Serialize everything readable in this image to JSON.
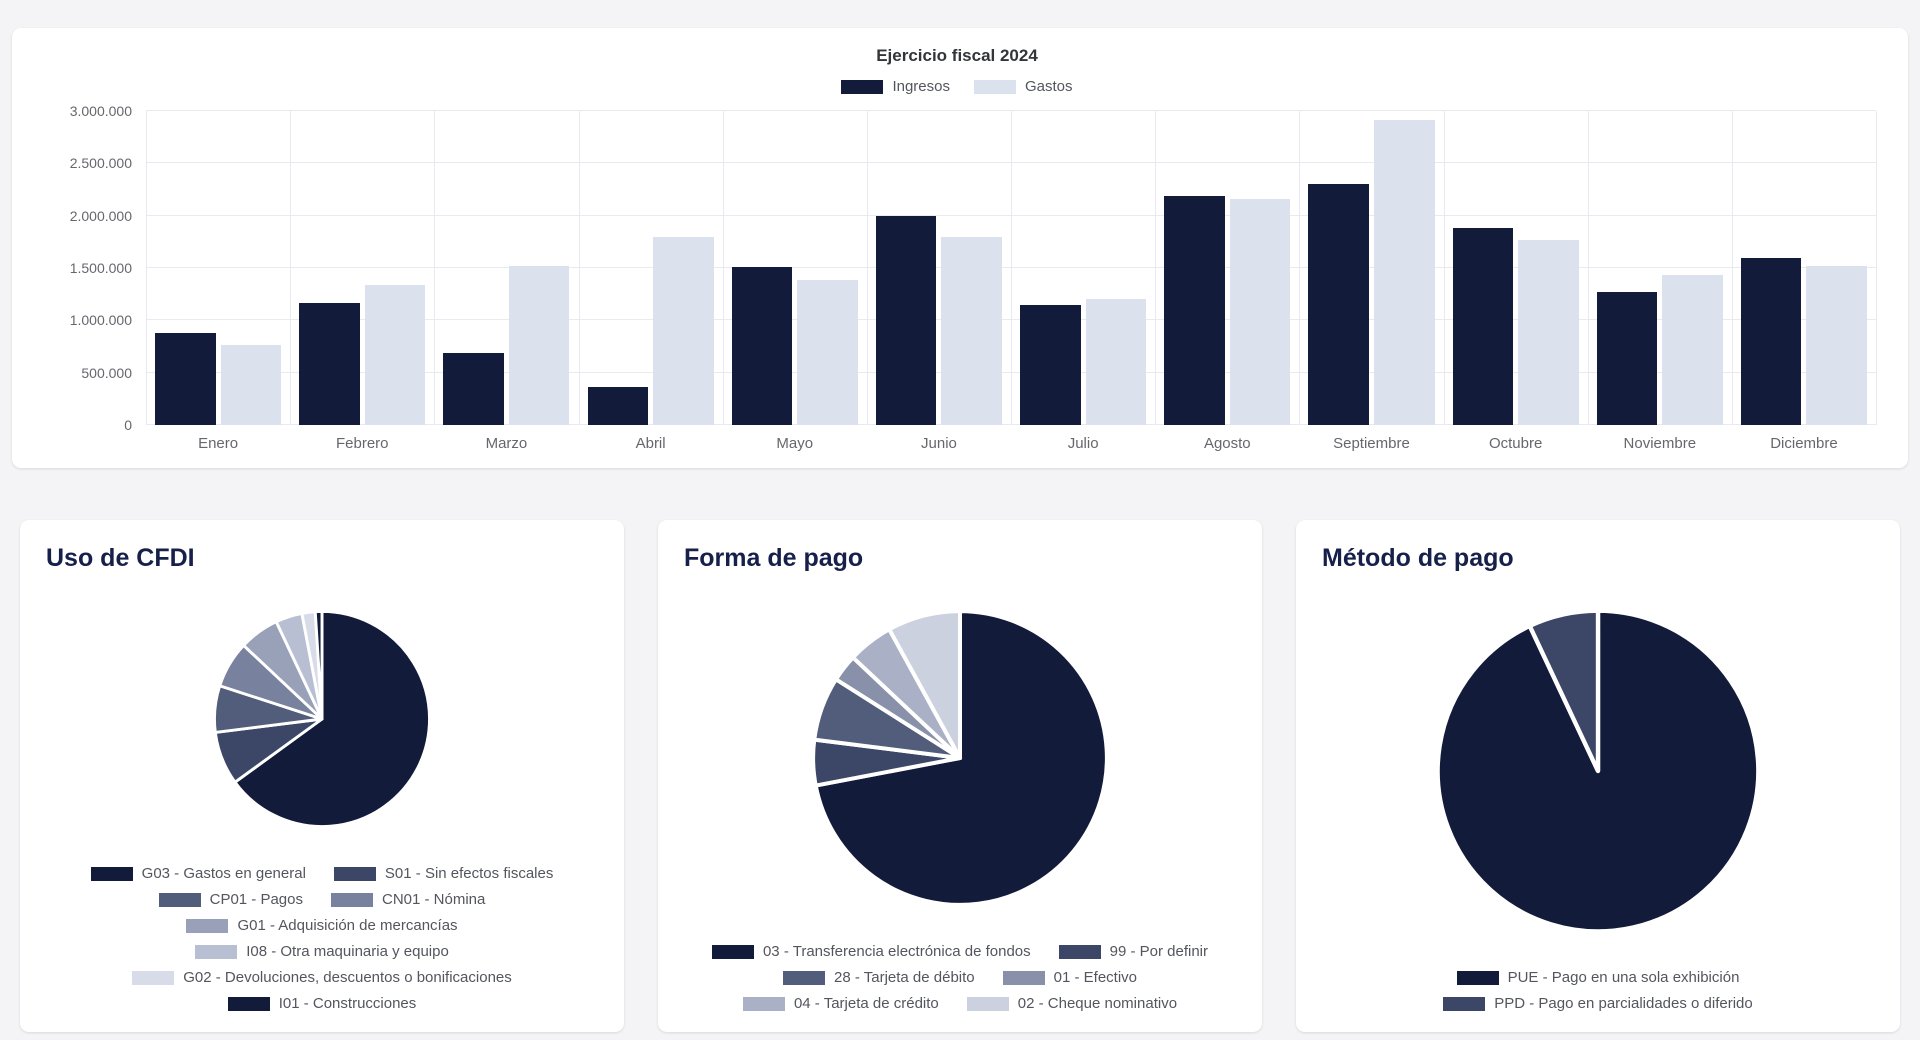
{
  "chart_data": [
    {
      "type": "bar",
      "title": "Ejercicio fiscal 2024",
      "categories": [
        "Enero",
        "Febrero",
        "Marzo",
        "Abril",
        "Mayo",
        "Junio",
        "Julio",
        "Agosto",
        "Septiembre",
        "Octubre",
        "Noviembre",
        "Diciembre"
      ],
      "series": [
        {
          "name": "Ingresos",
          "color": "#131b3a",
          "values": [
            880000,
            1170000,
            690000,
            360000,
            1510000,
            2000000,
            1150000,
            2190000,
            2300000,
            1880000,
            1270000,
            1600000
          ]
        },
        {
          "name": "Gastos",
          "color": "#dce1ee",
          "values": [
            760000,
            1340000,
            1520000,
            1800000,
            1390000,
            1800000,
            1200000,
            2160000,
            2910000,
            1770000,
            1430000,
            1520000
          ]
        }
      ],
      "ylim": [
        0,
        3000000
      ],
      "y_tick_labels": [
        "0",
        "500.000",
        "1.000.000",
        "1.500.000",
        "2.000.000",
        "2.500.000",
        "3.000.000"
      ],
      "grid": true,
      "legend_position": "top"
    },
    {
      "type": "pie",
      "title": "Uso de CFDI",
      "slices": [
        {
          "label": "G03 - Gastos en general",
          "value": 65,
          "color": "#131b3a"
        },
        {
          "label": "S01 - Sin efectos fiscales",
          "value": 8,
          "color": "#3c4666"
        },
        {
          "label": "CP01 - Pagos",
          "value": 7,
          "color": "#525c7b"
        },
        {
          "label": "CN01 - Nómina",
          "value": 7,
          "color": "#78819e"
        },
        {
          "label": "G01 - Adquisición de mercancías",
          "value": 6,
          "color": "#99a1b9"
        },
        {
          "label": "I08 - Otra maquinaria y equipo",
          "value": 4,
          "color": "#b9bfd2"
        },
        {
          "label": "G02 - Devoluciones, descuentos o bonificaciones",
          "value": 2,
          "color": "#d8dce8"
        },
        {
          "label": "I01 - Construcciones",
          "value": 1,
          "color": "#131b3a"
        }
      ],
      "legend_rows": [
        [
          0,
          1
        ],
        [
          2,
          3
        ],
        [
          4
        ],
        [
          5
        ],
        [
          6
        ],
        [
          7
        ]
      ],
      "legend_position": "bottom"
    },
    {
      "type": "pie",
      "title": "Forma de pago",
      "slices": [
        {
          "label": "03 - Transferencia electrónica de fondos",
          "value": 72,
          "color": "#131b3a"
        },
        {
          "label": "99 - Por definir",
          "value": 5,
          "color": "#3c4666"
        },
        {
          "label": "28 - Tarjeta de débito",
          "value": 7,
          "color": "#525c7b"
        },
        {
          "label": "01 - Efectivo",
          "value": 3,
          "color": "#8890aa"
        },
        {
          "label": "04 - Tarjeta de crédito",
          "value": 5,
          "color": "#aab0c5"
        },
        {
          "label": "02 - Cheque nominativo",
          "value": 8,
          "color": "#ccd1e0"
        }
      ],
      "legend_rows": [
        [
          0,
          1
        ],
        [
          2,
          3
        ],
        [
          4,
          5
        ]
      ],
      "legend_position": "bottom"
    },
    {
      "type": "pie",
      "title": "Método de pago",
      "slices": [
        {
          "label": "PUE - Pago en una sola exhibición",
          "value": 93,
          "color": "#131b3a"
        },
        {
          "label": "PPD - Pago en parcialidades o diferido",
          "value": 7,
          "color": "#3c4666"
        }
      ],
      "legend_rows": [
        [
          0
        ],
        [
          1
        ]
      ],
      "legend_position": "bottom"
    }
  ]
}
